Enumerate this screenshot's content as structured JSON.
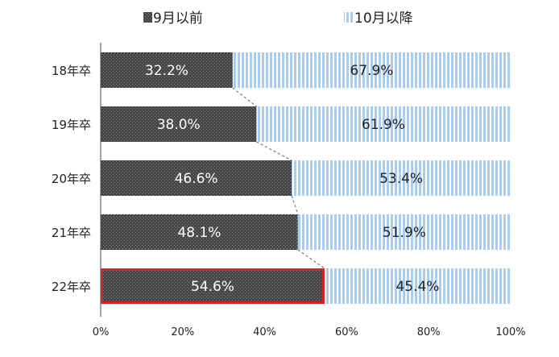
{
  "chart_data": {
    "type": "bar",
    "orientation": "horizontal",
    "stacked": true,
    "categories": [
      "18年卒",
      "19年卒",
      "20年卒",
      "21年卒",
      "22年卒"
    ],
    "series": [
      {
        "name": "9月以前",
        "values": [
          32.2,
          38.0,
          46.6,
          48.1,
          54.6
        ],
        "labels": [
          "32.2%",
          "38.0%",
          "46.6%",
          "48.1%",
          "54.6%"
        ],
        "color": "#4a4a4a"
      },
      {
        "name": "10月以降",
        "values": [
          67.9,
          61.9,
          53.4,
          51.9,
          45.4
        ],
        "labels": [
          "67.9%",
          "61.9%",
          "53.4%",
          "51.9%",
          "45.4%"
        ],
        "color": "#a9cdf0"
      }
    ],
    "xlim": [
      0,
      100
    ],
    "x_ticks": [
      "0%",
      "20%",
      "40%",
      "60%",
      "80%",
      "100%"
    ],
    "legend_position": "top",
    "highlight_category": "22年卒",
    "highlight_color": "#e02020",
    "connector_lines": true
  }
}
